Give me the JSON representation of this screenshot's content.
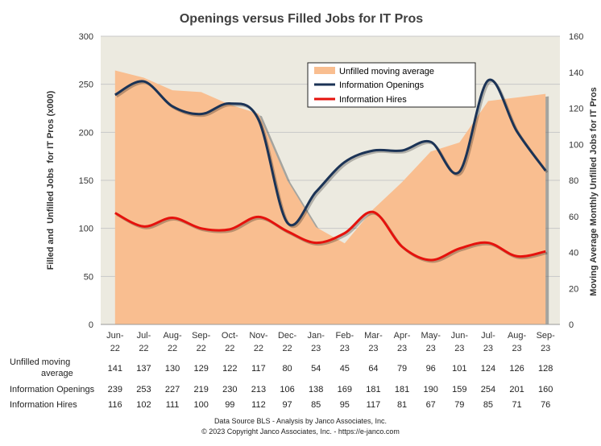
{
  "chart_data": {
    "type": "line",
    "title": "Openings versus Filled Jobs for IT Pros",
    "ylabel_left": "Filled and  Unfilled Jobs  for IT Pros (x000)",
    "ylabel_right": "Moving Average Monthly Unfilled Jobs for IT Pros",
    "ylim_left": [
      0,
      300
    ],
    "yticks_left": [
      0,
      50,
      100,
      150,
      200,
      250,
      300
    ],
    "ylim_right": [
      0,
      160
    ],
    "yticks_right": [
      0,
      20,
      40,
      60,
      80,
      100,
      120,
      140,
      160
    ],
    "categories": [
      [
        "Jun-",
        "22"
      ],
      [
        "Jul-",
        "22"
      ],
      [
        "Aug-",
        "22"
      ],
      [
        "Sep-",
        "22"
      ],
      [
        "Oct-",
        "22"
      ],
      [
        "Nov-",
        "22"
      ],
      [
        "Dec-",
        "22"
      ],
      [
        "Jan-",
        "23"
      ],
      [
        "Feb-",
        "23"
      ],
      [
        "Mar-",
        "23"
      ],
      [
        "Apr-",
        "23"
      ],
      [
        "May-",
        "23"
      ],
      [
        "Jun-",
        "23"
      ],
      [
        "Jul-",
        "23"
      ],
      [
        "Aug-",
        "23"
      ],
      [
        "Sep-",
        "23"
      ]
    ],
    "legend_position": "top-right",
    "series": [
      {
        "name": "Unfilled moving average",
        "table_label": [
          "Unfilled moving",
          "average"
        ],
        "kind": "area",
        "axis": "right",
        "color": "#F9BE90",
        "values": [
          141,
          137,
          130,
          129,
          122,
          117,
          80,
          54,
          45,
          64,
          79,
          96,
          101,
          124,
          126,
          128
        ]
      },
      {
        "name": "Information Openings",
        "table_label": [
          "Information Openings"
        ],
        "kind": "line",
        "axis": "left",
        "color": "#1B3356",
        "values": [
          239,
          253,
          227,
          219,
          230,
          213,
          106,
          138,
          169,
          181,
          181,
          190,
          159,
          254,
          201,
          160
        ]
      },
      {
        "name": "Information Hires",
        "table_label": [
          "Information Hires"
        ],
        "kind": "line",
        "axis": "left",
        "color": "#E5120D",
        "values": [
          116,
          102,
          111,
          100,
          99,
          112,
          97,
          85,
          95,
          117,
          81,
          67,
          79,
          85,
          71,
          76
        ]
      }
    ]
  },
  "colors": {
    "plot_background": "#ECEAE0",
    "gridline": "#C8C8C8",
    "area_shadow": "#6A6A6A"
  },
  "footer": {
    "line1": "Data Source BLS - Analysis by Janco Associates, Inc.",
    "line2": "© 2023 Copyright Janco Associates, Inc. - https://e-janco.com"
  }
}
